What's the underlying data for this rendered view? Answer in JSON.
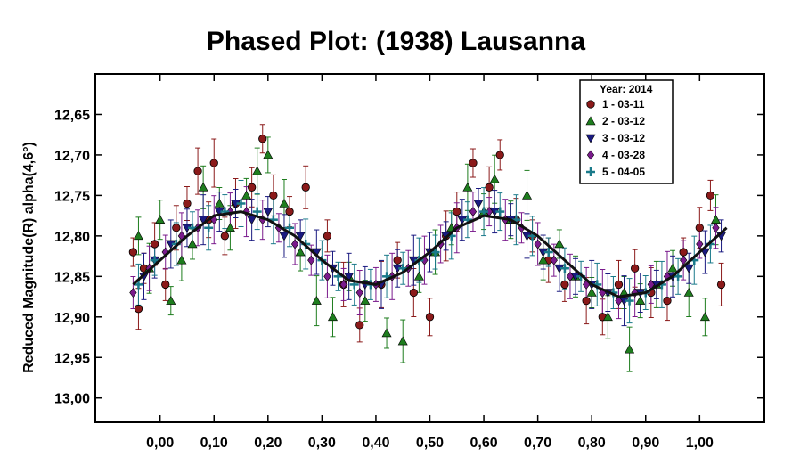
{
  "chart_data": {
    "type": "scatter",
    "title": "Phased Plot: (1938) Lausanna",
    "xlabel": "",
    "ylabel": "Reduced Magnitude(R) alpha(4,6°)",
    "xlim": [
      -0.12,
      1.12
    ],
    "ylim": [
      12.6,
      13.03
    ],
    "y_inverted": true,
    "x_ticks": [
      0.0,
      0.1,
      0.2,
      0.3,
      0.4,
      0.5,
      0.6,
      0.7,
      0.8,
      0.9,
      1.0
    ],
    "x_tick_labels": [
      "0,00",
      "0,10",
      "0,20",
      "0,30",
      "0,40",
      "0,50",
      "0,60",
      "0,70",
      "0,80",
      "0,90",
      "1,00"
    ],
    "y_ticks": [
      12.65,
      12.7,
      12.75,
      12.8,
      12.85,
      12.9,
      12.95,
      13.0
    ],
    "y_tick_labels": [
      "12,65",
      "12,70",
      "12,75",
      "12,80",
      "12,85",
      "12,90",
      "12,95",
      "13,00"
    ],
    "grid": false,
    "legend_position": "top-right",
    "legend_title": "Year: 2014",
    "series": [
      {
        "name": "1 - 03-11",
        "marker": "circle",
        "color": "#8b1a1a",
        "x": [
          -0.05,
          -0.04,
          -0.03,
          -0.01,
          0.01,
          0.03,
          0.05,
          0.07,
          0.09,
          0.1,
          0.12,
          0.14,
          0.17,
          0.19,
          0.21,
          0.24,
          0.27,
          0.31,
          0.34,
          0.37,
          0.41,
          0.44,
          0.47,
          0.5,
          0.53,
          0.55,
          0.58,
          0.61,
          0.63,
          0.66,
          0.69,
          0.72,
          0.75,
          0.79,
          0.82,
          0.85,
          0.88,
          0.91,
          0.94,
          0.97,
          1.0,
          1.02,
          1.04
        ],
        "y": [
          12.82,
          12.89,
          12.84,
          12.81,
          12.86,
          12.79,
          12.76,
          12.72,
          12.78,
          12.71,
          12.8,
          12.76,
          12.74,
          12.68,
          12.75,
          12.77,
          12.74,
          12.8,
          12.86,
          12.91,
          12.86,
          12.83,
          12.87,
          12.9,
          12.8,
          12.77,
          12.71,
          12.74,
          12.7,
          12.78,
          12.8,
          12.83,
          12.86,
          12.88,
          12.9,
          12.86,
          12.84,
          12.87,
          12.88,
          12.82,
          12.79,
          12.75,
          12.86
        ]
      },
      {
        "name": "2 - 03-12",
        "marker": "triangle-up",
        "color": "#1e7d1e",
        "x": [
          -0.04,
          -0.02,
          0.0,
          0.02,
          0.04,
          0.06,
          0.08,
          0.11,
          0.13,
          0.16,
          0.18,
          0.2,
          0.23,
          0.26,
          0.29,
          0.32,
          0.35,
          0.38,
          0.42,
          0.45,
          0.48,
          0.51,
          0.54,
          0.57,
          0.6,
          0.62,
          0.65,
          0.68,
          0.71,
          0.74,
          0.77,
          0.8,
          0.83,
          0.86,
          0.87,
          0.89,
          0.92,
          0.95,
          0.98,
          1.01,
          1.03
        ],
        "y": [
          12.8,
          12.84,
          12.78,
          12.88,
          12.83,
          12.81,
          12.74,
          12.76,
          12.79,
          12.75,
          12.72,
          12.7,
          12.76,
          12.82,
          12.88,
          12.9,
          12.85,
          12.88,
          12.92,
          12.93,
          12.85,
          12.82,
          12.79,
          12.74,
          12.77,
          12.73,
          12.78,
          12.75,
          12.83,
          12.81,
          12.85,
          12.87,
          12.9,
          12.87,
          12.94,
          12.88,
          12.86,
          12.84,
          12.87,
          12.9,
          12.78
        ]
      },
      {
        "name": "3 - 03-12",
        "marker": "triangle-down",
        "color": "#1a1a80",
        "x": [
          -0.03,
          -0.01,
          0.02,
          0.05,
          0.08,
          0.11,
          0.14,
          0.17,
          0.2,
          0.23,
          0.26,
          0.29,
          0.32,
          0.35,
          0.38,
          0.41,
          0.44,
          0.47,
          0.5,
          0.53,
          0.56,
          0.59,
          0.62,
          0.65,
          0.68,
          0.71,
          0.74,
          0.77,
          0.8,
          0.83,
          0.86,
          0.89,
          0.92,
          0.95,
          0.98,
          1.01,
          1.04
        ],
        "y": [
          12.85,
          12.83,
          12.81,
          12.79,
          12.78,
          12.77,
          12.76,
          12.78,
          12.77,
          12.8,
          12.8,
          12.82,
          12.84,
          12.85,
          12.86,
          12.86,
          12.84,
          12.83,
          12.82,
          12.8,
          12.78,
          12.76,
          12.77,
          12.78,
          12.8,
          12.82,
          12.84,
          12.85,
          12.86,
          12.87,
          12.88,
          12.87,
          12.86,
          12.85,
          12.84,
          12.82,
          12.8
        ]
      },
      {
        "name": "4 - 03-28",
        "marker": "diamond",
        "color": "#7a1a8c",
        "x": [
          -0.05,
          -0.02,
          0.01,
          0.04,
          0.07,
          0.1,
          0.13,
          0.16,
          0.19,
          0.22,
          0.25,
          0.28,
          0.31,
          0.34,
          0.37,
          0.4,
          0.43,
          0.46,
          0.49,
          0.52,
          0.55,
          0.58,
          0.61,
          0.64,
          0.67,
          0.7,
          0.73,
          0.76,
          0.79,
          0.82,
          0.85,
          0.88,
          0.91,
          0.94,
          0.97,
          1.0,
          1.03
        ],
        "y": [
          12.87,
          12.84,
          12.82,
          12.8,
          12.79,
          12.78,
          12.77,
          12.77,
          12.78,
          12.79,
          12.81,
          12.83,
          12.85,
          12.86,
          12.87,
          12.86,
          12.85,
          12.84,
          12.83,
          12.81,
          12.79,
          12.77,
          12.77,
          12.78,
          12.79,
          12.81,
          12.83,
          12.85,
          12.86,
          12.87,
          12.88,
          12.87,
          12.86,
          12.85,
          12.83,
          12.81,
          12.79
        ]
      },
      {
        "name": "5 - 04-05",
        "marker": "plus",
        "color": "#1a7a8a",
        "x": [
          -0.04,
          -0.01,
          0.03,
          0.06,
          0.09,
          0.12,
          0.15,
          0.18,
          0.21,
          0.24,
          0.27,
          0.3,
          0.33,
          0.36,
          0.39,
          0.42,
          0.45,
          0.48,
          0.51,
          0.54,
          0.57,
          0.6,
          0.63,
          0.66,
          0.69,
          0.72,
          0.75,
          0.78,
          0.81,
          0.84,
          0.87,
          0.9,
          0.93,
          0.96,
          0.99,
          1.02
        ],
        "y": [
          12.86,
          12.83,
          12.81,
          12.79,
          12.79,
          12.77,
          12.76,
          12.77,
          12.78,
          12.79,
          12.81,
          12.83,
          12.85,
          12.86,
          12.86,
          12.85,
          12.84,
          12.83,
          12.82,
          12.8,
          12.78,
          12.77,
          12.77,
          12.78,
          12.8,
          12.82,
          12.84,
          12.85,
          12.86,
          12.87,
          12.88,
          12.87,
          12.86,
          12.85,
          12.83,
          12.81
        ]
      }
    ],
    "fit_curve": {
      "x": [
        -0.05,
        0.0,
        0.05,
        0.1,
        0.15,
        0.2,
        0.25,
        0.3,
        0.35,
        0.4,
        0.45,
        0.5,
        0.55,
        0.6,
        0.65,
        0.7,
        0.75,
        0.8,
        0.85,
        0.9,
        0.95,
        1.0,
        1.05
      ],
      "y": [
        12.86,
        12.83,
        12.8,
        12.775,
        12.77,
        12.78,
        12.8,
        12.83,
        12.855,
        12.86,
        12.845,
        12.82,
        12.79,
        12.775,
        12.78,
        12.8,
        12.83,
        12.86,
        12.875,
        12.87,
        12.85,
        12.82,
        12.79
      ]
    }
  }
}
